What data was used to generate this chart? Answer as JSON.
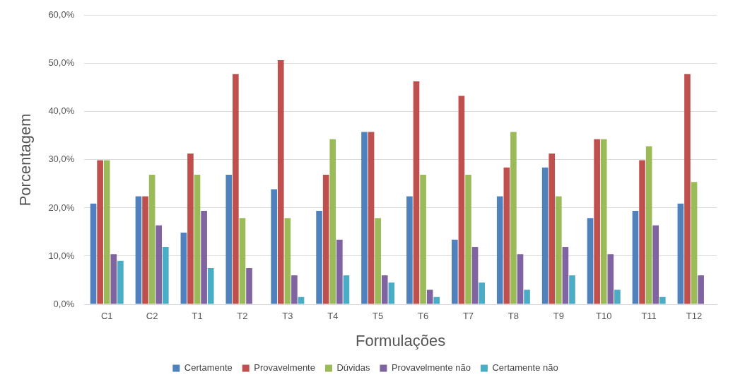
{
  "chart_data": {
    "type": "bar",
    "xlabel": "Formulações",
    "ylabel": "Porcentagem",
    "categories": [
      "C1",
      "C2",
      "T1",
      "T2",
      "T3",
      "T4",
      "T5",
      "T6",
      "T7",
      "T8",
      "T9",
      "T10",
      "T11",
      "T12"
    ],
    "series": [
      {
        "name": "Certamente",
        "color": "#4f81bd",
        "values": [
          20.9,
          22.4,
          14.9,
          26.9,
          23.9,
          19.4,
          35.8,
          22.4,
          13.4,
          22.4,
          28.4,
          17.9,
          19.4,
          20.9
        ]
      },
      {
        "name": "Provavelmente",
        "color": "#c0504d",
        "values": [
          29.9,
          22.4,
          31.3,
          47.8,
          50.7,
          26.9,
          35.8,
          46.3,
          43.3,
          28.4,
          31.3,
          34.3,
          29.9,
          47.8
        ]
      },
      {
        "name": "Dúvidas",
        "color": "#9bbb59",
        "values": [
          29.9,
          26.9,
          26.9,
          17.9,
          17.9,
          34.3,
          17.9,
          26.9,
          26.9,
          35.8,
          22.4,
          34.3,
          32.8,
          25.4
        ]
      },
      {
        "name": "Provavelmente não",
        "color": "#8064a2",
        "values": [
          10.4,
          16.4,
          19.4,
          7.5,
          6.0,
          13.4,
          6.0,
          3.0,
          11.9,
          10.4,
          11.9,
          10.4,
          16.4,
          6.0
        ]
      },
      {
        "name": "Certamente não",
        "color": "#4bacc6",
        "values": [
          9.0,
          11.9,
          7.5,
          0,
          1.5,
          6.0,
          4.5,
          1.5,
          4.5,
          3.0,
          6.0,
          3.0,
          1.5,
          0
        ]
      }
    ],
    "ylim": [
      0,
      60
    ],
    "yticks": [
      {
        "value": 0,
        "label": "0,0%"
      },
      {
        "value": 10,
        "label": "10,0%"
      },
      {
        "value": 20,
        "label": "20,0%"
      },
      {
        "value": 30,
        "label": "30,0%"
      },
      {
        "value": 40,
        "label": "40,0%"
      },
      {
        "value": 50,
        "label": "50,0%"
      },
      {
        "value": 60,
        "label": "60,0%"
      }
    ],
    "grid": "y",
    "legend": "bottom"
  }
}
